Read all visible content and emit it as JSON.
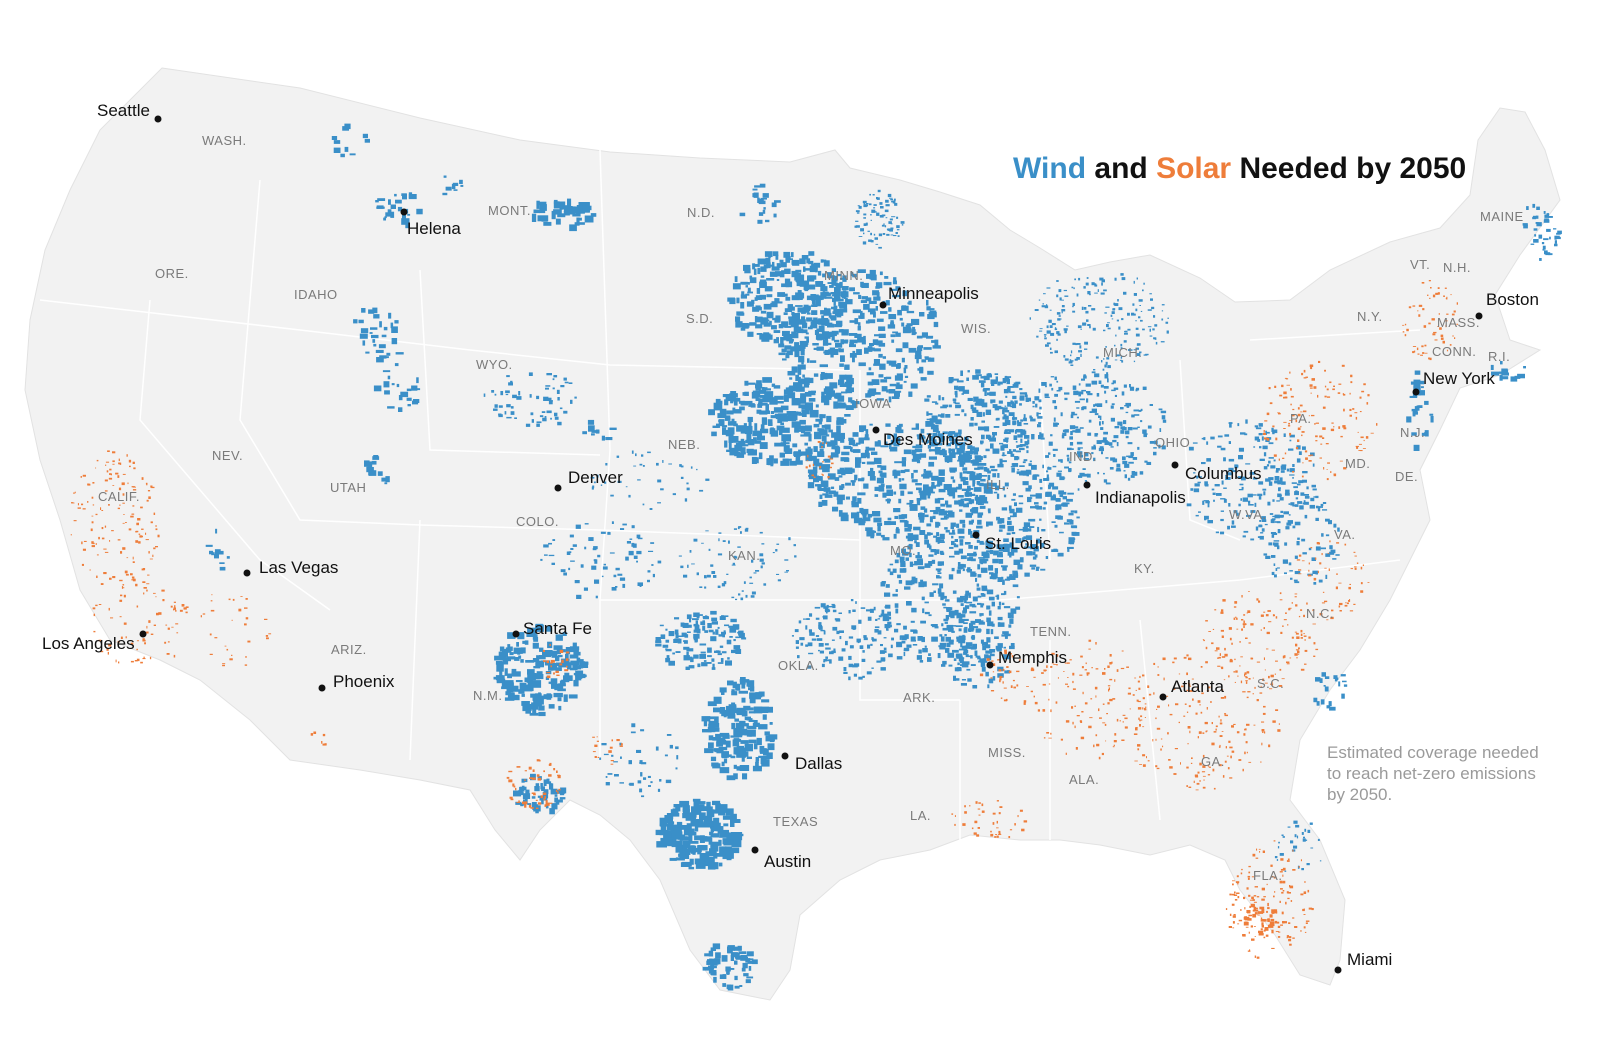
{
  "title": {
    "wind": "Wind",
    "and": "and",
    "solar": "Solar",
    "rest": "Needed by 2050"
  },
  "note": "Estimated coverage needed to reach net-zero emissions by 2050.",
  "colors": {
    "wind": "#3a8fc8",
    "solar": "#ee7d3a",
    "land": "#f2f2f2",
    "border": "#ffffff",
    "background": "#ffffff"
  },
  "cities": [
    "Seattle",
    "Helena",
    "Minneapolis",
    "Boston",
    "New York",
    "Des Moines",
    "Denver",
    "Columbus",
    "Indianapolis",
    "St. Louis",
    "Las Vegas",
    "Los Angeles",
    "Santa Fe",
    "Phoenix",
    "Memphis",
    "Atlanta",
    "Dallas",
    "Austin",
    "Miami"
  ],
  "states": [
    "WASH.",
    "MONT.",
    "N.D.",
    "MAINE",
    "ORE.",
    "IDAHO",
    "MINN.",
    "VT.",
    "N.H.",
    "S.D.",
    "WIS.",
    "N.Y.",
    "MASS.",
    "WYO.",
    "MICH.",
    "CONN.",
    "R.I.",
    "IOWA",
    "PA.",
    "NEB.",
    "OHIO",
    "N.J.",
    "NEV.",
    "IND.",
    "MD.",
    "DE.",
    "UTAH",
    "ILL.",
    "CALIF.",
    "COLO.",
    "W.VA.",
    "MO.",
    "VA.",
    "KAN.",
    "KY.",
    "N.C.",
    "TENN.",
    "ARIZ.",
    "OKLA.",
    "N.M.",
    "ARK.",
    "S.C.",
    "MISS.",
    "ALA.",
    "GA.",
    "TEXAS",
    "LA.",
    "FLA."
  ]
}
